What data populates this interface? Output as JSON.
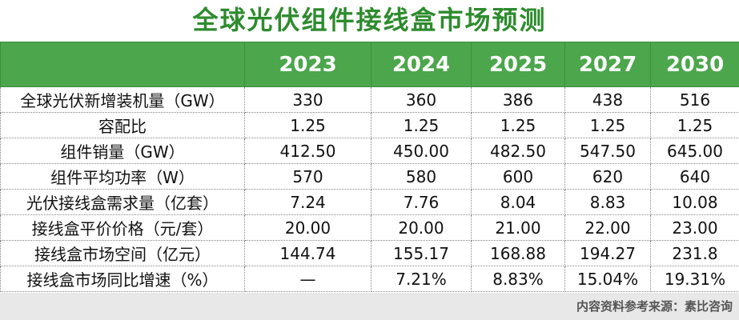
{
  "title": "全球光伏组件接线盒市场预测",
  "table": {
    "header": [
      "",
      "2023",
      "2024",
      "2025",
      "2027",
      "2030"
    ],
    "rows": [
      [
        "全球光伏新增装机量（GW）",
        "330",
        "360",
        "386",
        "438",
        "516"
      ],
      [
        "容配比",
        "1.25",
        "1.25",
        "1.25",
        "1.25",
        "1.25"
      ],
      [
        "组件销量（GW）",
        "412.50",
        "450.00",
        "482.50",
        "547.50",
        "645.00"
      ],
      [
        "组件平均功率（W）",
        "570",
        "580",
        "600",
        "620",
        "640"
      ],
      [
        "光伏接线盒需求量（亿套）",
        "7.24",
        "7.76",
        "8.04",
        "8.83",
        "10.08"
      ],
      [
        "接线盒平价价格（元/套）",
        "20.00",
        "20.00",
        "21.00",
        "22.00",
        "23.00"
      ],
      [
        "接线盒市场空间（亿元）",
        "144.74",
        "155.17",
        "168.88",
        "194.27",
        "231.8"
      ],
      [
        "接线盒市场同比增速（%）",
        "—",
        "7.21%",
        "8.83%",
        "15.04%",
        "19.31%"
      ]
    ]
  },
  "footer": "内容资料参考来源：素比咨询"
}
